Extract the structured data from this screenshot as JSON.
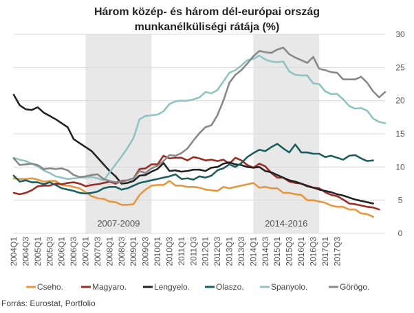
{
  "chart_data": {
    "type": "line",
    "title_lines": [
      "Három közép- és három dél-európai ország",
      "munkanélküliségi rátája (%)"
    ],
    "source": "Forrás: Eurostat, Portfolio",
    "ylim": [
      0,
      30
    ],
    "yticks": [
      0,
      5,
      10,
      15,
      20,
      25,
      30
    ],
    "y_axis_side": "right",
    "grid": "horizontal",
    "x_tick_labels": [
      "2004Q1",
      "2004Q3",
      "2005Q1",
      "2005Q3",
      "2006Q1",
      "2006Q3",
      "2007Q1",
      "2007Q3",
      "2008Q1",
      "2008Q3",
      "2009Q1",
      "2009Q3",
      "2010Q1",
      "2010Q3",
      "2011Q1",
      "2011Q3",
      "2012Q1",
      "2012Q3",
      "2013Q1",
      "2013Q3",
      "2014Q1",
      "2014Q3",
      "2015Q1",
      "2015Q3",
      "2016Q1",
      "2016Q3",
      "2017Q1",
      "2017Q3"
    ],
    "shaded_periods": [
      {
        "label": "2007-2009",
        "start_index": 12,
        "end_index": 23
      },
      {
        "label": "2014-2016",
        "start_index": 40,
        "end_index": 51
      }
    ],
    "legend_position": "bottom",
    "series": [
      {
        "name": "Cseho.",
        "color": "#e8963c",
        "values": [
          8.3,
          8.2,
          8.2,
          8.3,
          8.1,
          7.8,
          7.9,
          7.9,
          7.3,
          7.2,
          7.0,
          6.8,
          6.2,
          5.6,
          5.3,
          5.2,
          4.8,
          4.7,
          4.3,
          4.3,
          4.4,
          5.8,
          6.6,
          7.2,
          7.3,
          7.3,
          7.9,
          7.2,
          7.2,
          7.0,
          7.0,
          6.9,
          6.6,
          6.5,
          6.4,
          7.0,
          6.8,
          7.0,
          7.2,
          7.4,
          7.6,
          6.9,
          7.0,
          6.8,
          6.8,
          6.1,
          6.1,
          5.9,
          5.8,
          5.0,
          5.0,
          4.8,
          4.6,
          4.2,
          4.0,
          4.0,
          3.6,
          3.6,
          3.0,
          2.9,
          2.5
        ]
      },
      {
        "name": "Magyaro.",
        "color": "#9e2b24",
        "values": [
          6.1,
          5.9,
          6.1,
          6.5,
          7.1,
          7.2,
          7.2,
          7.5,
          7.4,
          7.6,
          7.7,
          7.5,
          7.1,
          7.3,
          7.4,
          7.6,
          7.8,
          7.5,
          7.9,
          8.0,
          8.3,
          9.7,
          9.8,
          10.4,
          10.4,
          11.7,
          11.3,
          11.4,
          11.4,
          11.0,
          11.5,
          11.3,
          11.0,
          11.1,
          10.9,
          11.1,
          10.5,
          11.4,
          11.0,
          10.3,
          9.9,
          10.5,
          10.1,
          9.1,
          8.4,
          8.4,
          7.8,
          7.6,
          7.5,
          7.2,
          6.9,
          6.8,
          6.2,
          5.8,
          5.6,
          5.1,
          4.5,
          4.4,
          4.2,
          4.0,
          3.9,
          3.6
        ]
      },
      {
        "name": "Lengyelo.",
        "color": "#222222",
        "values": [
          20.9,
          19.3,
          18.7,
          18.6,
          19.0,
          18.2,
          17.7,
          17.2,
          16.6,
          16.0,
          14.2,
          13.6,
          13.0,
          12.4,
          11.4,
          10.4,
          9.4,
          8.6,
          7.5,
          7.6,
          7.9,
          8.7,
          8.8,
          9.3,
          9.7,
          10.6,
          9.4,
          9.5,
          9.3,
          9.4,
          9.6,
          9.6,
          9.4,
          9.9,
          10.0,
          10.5,
          10.7,
          10.4,
          10.3,
          10.0,
          9.9,
          10.0,
          9.4,
          9.2,
          8.8,
          8.4,
          8.0,
          7.8,
          7.5,
          7.1,
          6.9,
          6.6,
          6.4,
          6.2,
          5.9,
          5.7,
          5.4,
          5.1,
          4.9,
          4.7,
          4.5
        ]
      },
      {
        "name": "Olaszo.",
        "color": "#1a5e5e",
        "values": [
          8.7,
          7.8,
          8.0,
          7.7,
          7.7,
          7.4,
          7.7,
          7.3,
          6.8,
          6.6,
          6.4,
          6.1,
          6.0,
          6.1,
          6.3,
          6.8,
          7.0,
          7.0,
          6.6,
          6.8,
          7.2,
          7.6,
          7.8,
          8.0,
          8.2,
          8.4,
          8.6,
          8.9,
          8.2,
          8.3,
          8.1,
          8.6,
          8.4,
          8.7,
          9.5,
          9.8,
          10.4,
          10.0,
          10.6,
          11.5,
          12.1,
          12.6,
          12.4,
          13.0,
          13.5,
          12.8,
          12.2,
          13.4,
          12.2,
          12.2,
          12.0,
          12.0,
          11.5,
          11.7,
          11.4,
          11.1,
          11.7,
          11.8,
          11.3,
          10.9,
          11.0
        ]
      },
      {
        "name": "Spanyolo.",
        "color": "#8fc3c2",
        "values": [
          11.4,
          11.1,
          10.9,
          10.5,
          10.1,
          9.5,
          9.1,
          8.6,
          8.4,
          8.2,
          8.3,
          8.4,
          8.4,
          8.5,
          8.3,
          8.0,
          9.2,
          10.4,
          11.6,
          12.9,
          14.4,
          17.2,
          17.7,
          17.8,
          17.9,
          18.4,
          19.5,
          19.9,
          20.0,
          20.0,
          20.2,
          20.5,
          21.3,
          21.1,
          21.6,
          22.9,
          24.2,
          24.6,
          25.3,
          26.1,
          26.3,
          26.8,
          26.2,
          25.9,
          25.8,
          25.9,
          24.4,
          23.9,
          23.8,
          23.8,
          22.6,
          22.5,
          21.4,
          21.0,
          21.0,
          20.2,
          19.2,
          18.8,
          18.9,
          18.5,
          17.3,
          16.8,
          16.6
        ]
      },
      {
        "name": "Görögo.",
        "color": "#888888",
        "values": [
          11.3,
          10.3,
          10.4,
          10.5,
          10.3,
          9.7,
          9.8,
          9.7,
          9.8,
          9.5,
          8.8,
          8.5,
          8.6,
          8.8,
          8.9,
          8.2,
          7.9,
          7.7,
          7.8,
          8.0,
          8.3,
          9.4,
          9.1,
          9.8,
          10.2,
          10.9,
          11.8,
          11.7,
          12.1,
          12.8,
          14.0,
          15.1,
          16.0,
          16.3,
          17.8,
          20.0,
          22.7,
          23.9,
          24.6,
          25.6,
          26.7,
          27.5,
          27.3,
          27.2,
          27.7,
          28.0,
          27.0,
          26.5,
          26.1,
          25.7,
          26.6,
          24.8,
          24.6,
          24.3,
          24.2,
          23.2,
          23.2,
          23.2,
          23.6,
          22.7,
          21.4,
          20.5,
          21.3
        ]
      }
    ]
  }
}
